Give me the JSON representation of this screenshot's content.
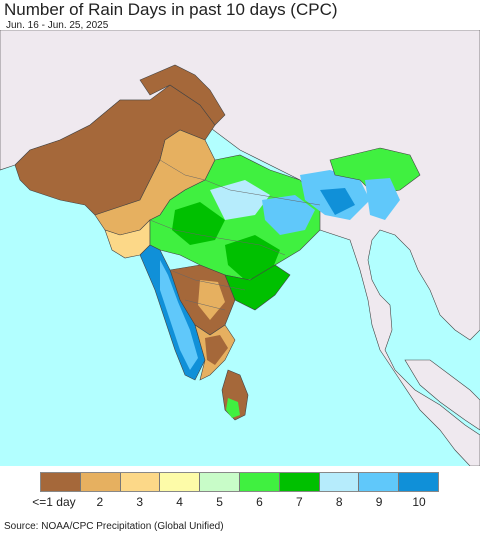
{
  "header": {
    "title": "Number of Rain Days in past 10 days (CPC)",
    "subtitle": "Jun. 16 - Jun. 25, 2025"
  },
  "legend": {
    "labels": [
      "<=1 day",
      "2",
      "3",
      "4",
      "5",
      "6",
      "7",
      "8",
      "9",
      "10"
    ],
    "colors": [
      "#a5683a",
      "#e6b060",
      "#fcd888",
      "#fdfba8",
      "#c8fcc8",
      "#40f040",
      "#00c000",
      "#b6ecfc",
      "#60c8fa",
      "#1090d8"
    ]
  },
  "footer": {
    "source": "Source: NOAA/CPC Precipitation (Global Unified)"
  },
  "map_colors": {
    "ocean": "#b2ffff",
    "land_outside": "#efe9ef",
    "borders": "#444444"
  }
}
